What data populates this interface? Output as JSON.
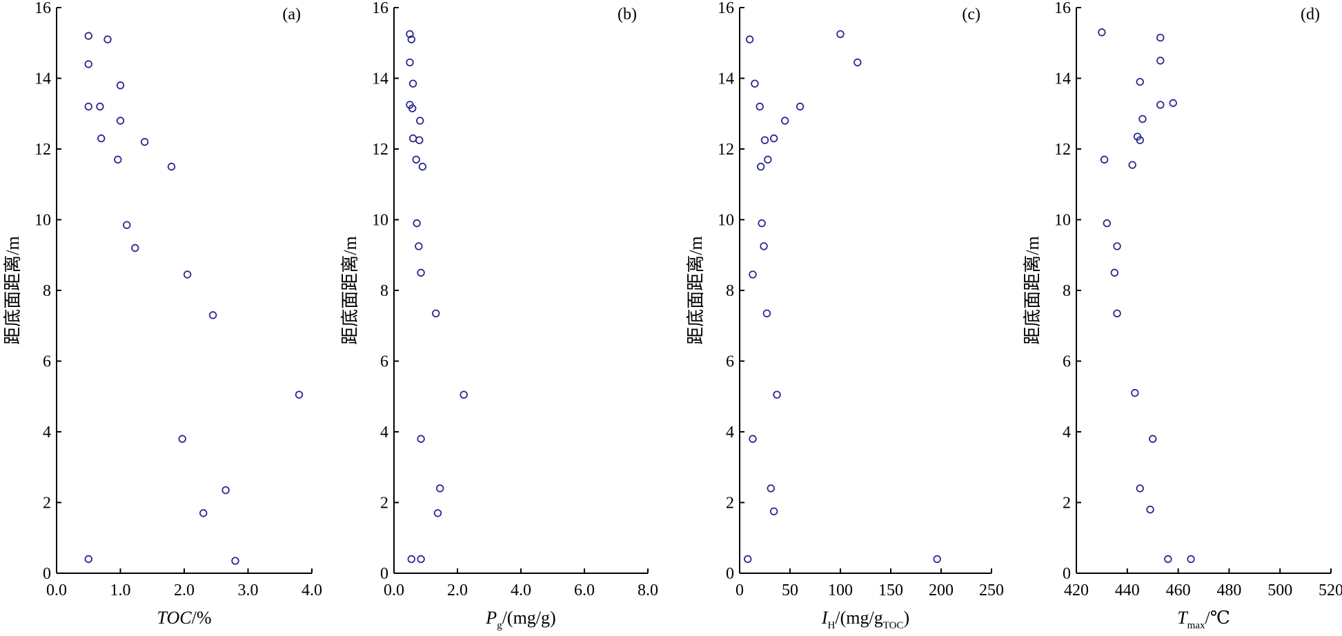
{
  "chart_data": [
    {
      "type": "scatter",
      "panel_label": "(a)",
      "xlabel": {
        "main": "TOC/%",
        "italic": "TOC",
        "rest": "/%"
      },
      "ylabel": "距底面距离/m",
      "xlim": [
        0,
        4.0
      ],
      "ylim": [
        0,
        16
      ],
      "x_ticks": [
        0.0,
        1.0,
        2.0,
        3.0,
        4.0
      ],
      "x_tick_labels": [
        "0.0",
        "1.0",
        "2.0",
        "3.0",
        "4.0"
      ],
      "y_ticks": [
        0,
        2,
        4,
        6,
        8,
        10,
        12,
        14,
        16
      ],
      "y_tick_labels": [
        "0",
        "2",
        "4",
        "6",
        "8",
        "10",
        "12",
        "14",
        "16"
      ],
      "points": [
        {
          "x": 0.5,
          "y": 15.2
        },
        {
          "x": 0.8,
          "y": 15.1
        },
        {
          "x": 0.5,
          "y": 14.4
        },
        {
          "x": 1.0,
          "y": 13.8
        },
        {
          "x": 0.5,
          "y": 13.2
        },
        {
          "x": 0.68,
          "y": 13.2
        },
        {
          "x": 1.0,
          "y": 12.8
        },
        {
          "x": 0.7,
          "y": 12.3
        },
        {
          "x": 1.38,
          "y": 12.2
        },
        {
          "x": 0.96,
          "y": 11.7
        },
        {
          "x": 1.8,
          "y": 11.5
        },
        {
          "x": 1.1,
          "y": 9.85
        },
        {
          "x": 1.23,
          "y": 9.2
        },
        {
          "x": 2.05,
          "y": 8.45
        },
        {
          "x": 2.45,
          "y": 7.3
        },
        {
          "x": 3.8,
          "y": 5.05
        },
        {
          "x": 1.97,
          "y": 3.8
        },
        {
          "x": 2.65,
          "y": 2.35
        },
        {
          "x": 2.3,
          "y": 1.7
        },
        {
          "x": 0.5,
          "y": 0.4
        },
        {
          "x": 2.8,
          "y": 0.35
        }
      ]
    },
    {
      "type": "scatter",
      "panel_label": "(b)",
      "xlabel": {
        "main": "Pg/(mg/g)",
        "italic": "P",
        "sub": "g",
        "rest": "/(mg/g)"
      },
      "ylabel": "距底面距离/m",
      "xlim": [
        0,
        8.0
      ],
      "ylim": [
        0,
        16
      ],
      "x_ticks": [
        0.0,
        2.0,
        4.0,
        6.0,
        8.0
      ],
      "x_tick_labels": [
        "0.0",
        "2.0",
        "4.0",
        "6.0",
        "8.0"
      ],
      "y_ticks": [
        0,
        2,
        4,
        6,
        8,
        10,
        12,
        14,
        16
      ],
      "y_tick_labels": [
        "0",
        "2",
        "4",
        "6",
        "8",
        "10",
        "12",
        "14",
        "16"
      ],
      "points": [
        {
          "x": 0.5,
          "y": 15.25
        },
        {
          "x": 0.55,
          "y": 15.1
        },
        {
          "x": 0.5,
          "y": 14.45
        },
        {
          "x": 0.6,
          "y": 13.85
        },
        {
          "x": 0.5,
          "y": 13.25
        },
        {
          "x": 0.58,
          "y": 13.15
        },
        {
          "x": 0.82,
          "y": 12.8
        },
        {
          "x": 0.6,
          "y": 12.3
        },
        {
          "x": 0.8,
          "y": 12.25
        },
        {
          "x": 0.7,
          "y": 11.7
        },
        {
          "x": 0.9,
          "y": 11.5
        },
        {
          "x": 0.72,
          "y": 9.9
        },
        {
          "x": 0.78,
          "y": 9.25
        },
        {
          "x": 0.85,
          "y": 8.5
        },
        {
          "x": 1.32,
          "y": 7.35
        },
        {
          "x": 2.2,
          "y": 5.05
        },
        {
          "x": 0.85,
          "y": 3.8
        },
        {
          "x": 1.45,
          "y": 2.4
        },
        {
          "x": 1.38,
          "y": 1.7
        },
        {
          "x": 0.55,
          "y": 0.4
        },
        {
          "x": 0.85,
          "y": 0.4
        }
      ]
    },
    {
      "type": "scatter",
      "panel_label": "(c)",
      "xlabel": {
        "main": "IH/(mg/gTOC)",
        "italic": "I",
        "sub": "H",
        "rest": "/(mg/g",
        "rest_sub": "TOC",
        "rest_end": ")"
      },
      "ylabel": "距底面距离/m",
      "xlim": [
        0,
        250
      ],
      "ylim": [
        0,
        16
      ],
      "x_ticks": [
        0,
        50,
        100,
        150,
        200,
        250
      ],
      "x_tick_labels": [
        "0",
        "50",
        "100",
        "150",
        "200",
        "250"
      ],
      "y_ticks": [
        0,
        2,
        4,
        6,
        8,
        10,
        12,
        14,
        16
      ],
      "y_tick_labels": [
        "0",
        "2",
        "4",
        "6",
        "8",
        "10",
        "12",
        "14",
        "16"
      ],
      "points": [
        {
          "x": 100,
          "y": 15.25
        },
        {
          "x": 10,
          "y": 15.1
        },
        {
          "x": 117,
          "y": 14.45
        },
        {
          "x": 15,
          "y": 13.85
        },
        {
          "x": 60,
          "y": 13.2
        },
        {
          "x": 20,
          "y": 13.2
        },
        {
          "x": 45,
          "y": 12.8
        },
        {
          "x": 25,
          "y": 12.25
        },
        {
          "x": 34,
          "y": 12.3
        },
        {
          "x": 28,
          "y": 11.7
        },
        {
          "x": 21,
          "y": 11.5
        },
        {
          "x": 22,
          "y": 9.9
        },
        {
          "x": 24,
          "y": 9.25
        },
        {
          "x": 13,
          "y": 8.45
        },
        {
          "x": 27,
          "y": 7.35
        },
        {
          "x": 37,
          "y": 5.05
        },
        {
          "x": 13,
          "y": 3.8
        },
        {
          "x": 31,
          "y": 2.4
        },
        {
          "x": 34,
          "y": 1.75
        },
        {
          "x": 8,
          "y": 0.4
        },
        {
          "x": 196,
          "y": 0.4
        }
      ]
    },
    {
      "type": "scatter",
      "panel_label": "(d)",
      "xlabel": {
        "main": "Tmax/℃",
        "italic": "T",
        "sub": "max",
        "rest": "/℃"
      },
      "ylabel": "距底面距离/m",
      "xlim": [
        420,
        520
      ],
      "ylim": [
        0,
        16
      ],
      "x_ticks": [
        420,
        440,
        460,
        480,
        500,
        520
      ],
      "x_tick_labels": [
        "420",
        "440",
        "460",
        "480",
        "500",
        "520"
      ],
      "y_ticks": [
        0,
        2,
        4,
        6,
        8,
        10,
        12,
        14,
        16
      ],
      "y_tick_labels": [
        "0",
        "2",
        "4",
        "6",
        "8",
        "10",
        "12",
        "14",
        "16"
      ],
      "points": [
        {
          "x": 430,
          "y": 15.3
        },
        {
          "x": 453,
          "y": 15.15
        },
        {
          "x": 453,
          "y": 14.5
        },
        {
          "x": 445,
          "y": 13.9
        },
        {
          "x": 453,
          "y": 13.25
        },
        {
          "x": 458,
          "y": 13.3
        },
        {
          "x": 446,
          "y": 12.85
        },
        {
          "x": 444,
          "y": 12.35
        },
        {
          "x": 445,
          "y": 12.25
        },
        {
          "x": 431,
          "y": 11.7
        },
        {
          "x": 442,
          "y": 11.55
        },
        {
          "x": 432,
          "y": 9.9
        },
        {
          "x": 436,
          "y": 9.25
        },
        {
          "x": 435,
          "y": 8.5
        },
        {
          "x": 436,
          "y": 7.35
        },
        {
          "x": 443,
          "y": 5.1
        },
        {
          "x": 450,
          "y": 3.8
        },
        {
          "x": 445,
          "y": 2.4
        },
        {
          "x": 449,
          "y": 1.8
        },
        {
          "x": 456,
          "y": 0.4
        },
        {
          "x": 465,
          "y": 0.4
        }
      ]
    }
  ],
  "style": {
    "marker_color": "#2a2a8c",
    "axis_color": "#000000"
  }
}
